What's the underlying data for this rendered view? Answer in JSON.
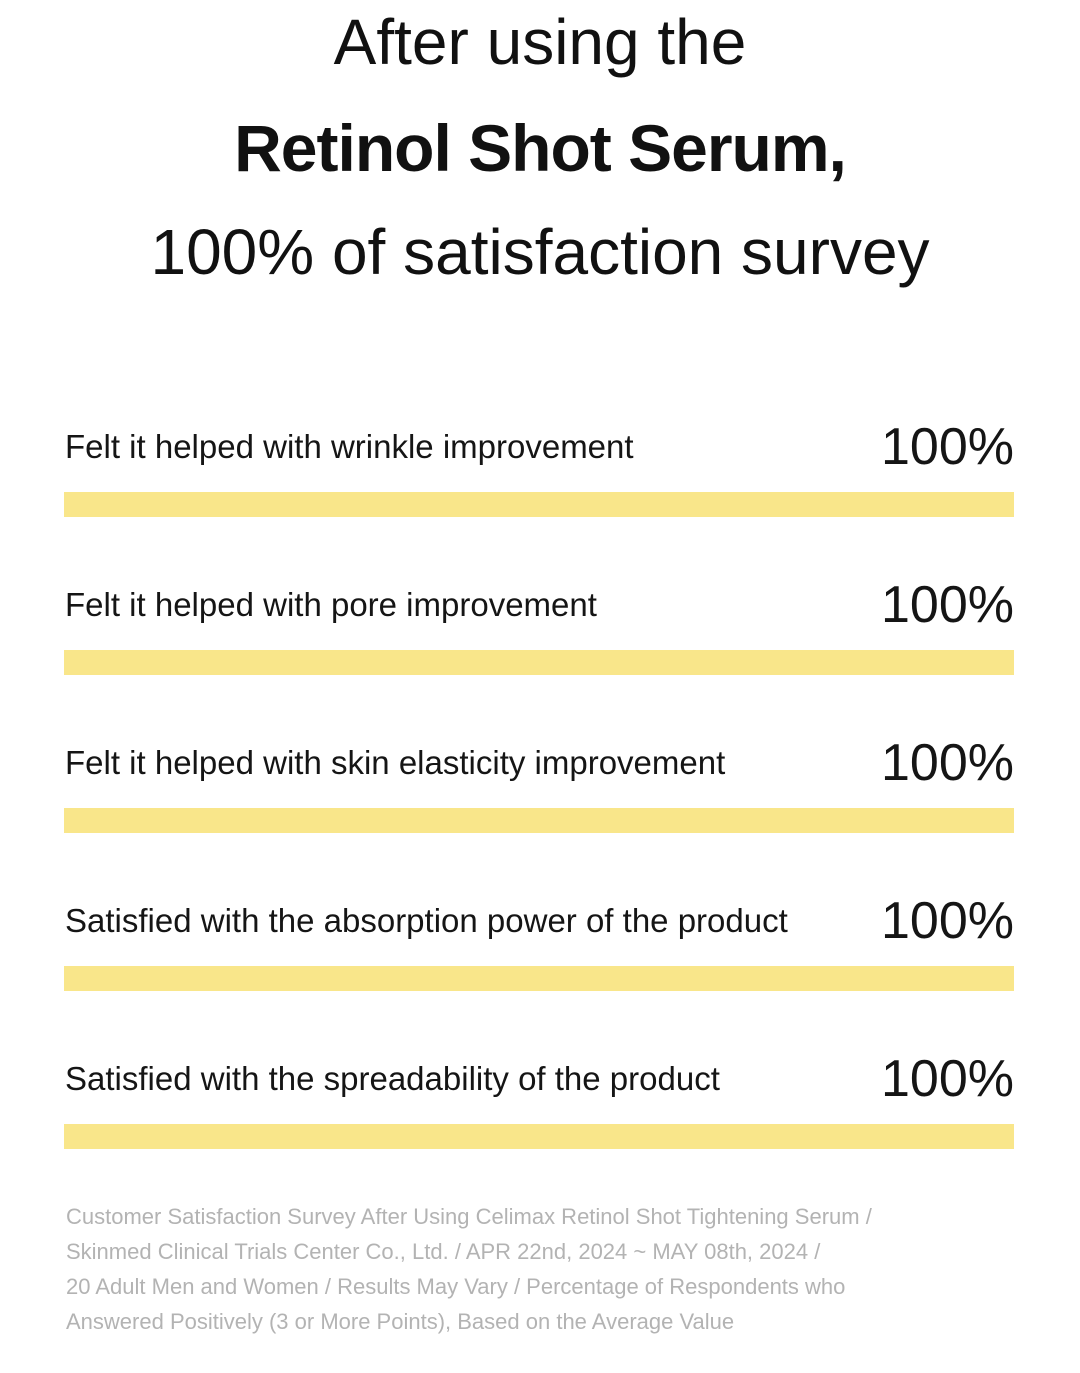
{
  "heading": {
    "line1": "After using the",
    "line2": "Retinol Shot Serum,",
    "line3": "100% of satisfaction survey"
  },
  "colors": {
    "bar": "#f9e68a",
    "text": "#111111",
    "footnote": "#b3b3b3"
  },
  "chart_data": {
    "type": "bar",
    "orientation": "horizontal",
    "categories": [
      "Felt it helped with wrinkle improvement",
      "Felt it helped with pore improvement",
      "Felt it helped with skin elasticity improvement",
      "Satisfied with the absorption power of the product",
      "Satisfied with the spreadability of the product"
    ],
    "values": [
      100,
      100,
      100,
      100,
      100
    ],
    "value_labels": [
      "100%",
      "100%",
      "100%",
      "100%",
      "100%"
    ],
    "xlim": [
      0,
      100
    ],
    "grid": false,
    "legend": "none"
  },
  "footnote": {
    "lines": [
      "Customer Satisfaction Survey After Using Celimax Retinol Shot Tightening Serum /",
      "Skinmed Clinical Trials Center Co., Ltd. / APR 22nd, 2024 ~ MAY 08th, 2024 /",
      "20 Adult Men and Women / Results May Vary / Percentage of Respondents who",
      "Answered Positively (3 or More Points), Based on the Average Value"
    ]
  }
}
